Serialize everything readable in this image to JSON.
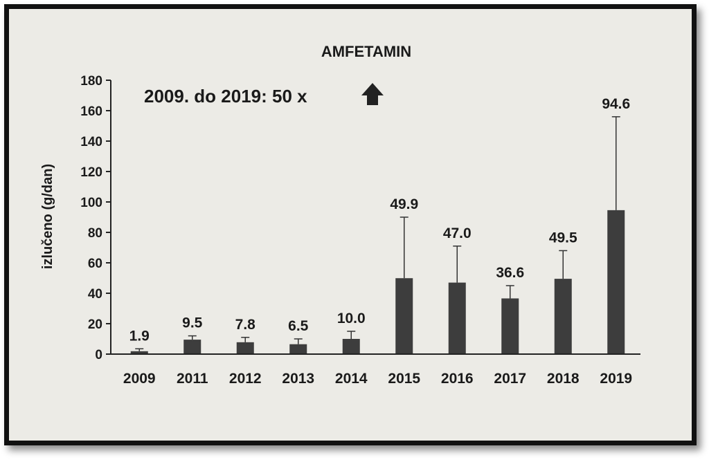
{
  "chart_data": {
    "type": "bar",
    "title": "AMFETAMIN",
    "annotation": "2009. do 2019: 50 x",
    "annotation_icon": "arrow-up-icon",
    "ylabel": "izlučeno (g/dan)",
    "xlabel": "",
    "ylim": [
      0,
      180
    ],
    "yticks": [
      0,
      20,
      40,
      60,
      80,
      100,
      120,
      140,
      160,
      180
    ],
    "grid": false,
    "categories": [
      "2009",
      "2011",
      "2012",
      "2013",
      "2014",
      "2015",
      "2016",
      "2017",
      "2018",
      "2019"
    ],
    "values": [
      1.9,
      9.5,
      7.8,
      6.5,
      10.0,
      49.9,
      47.0,
      36.6,
      49.5,
      94.6
    ],
    "value_labels": [
      "1.9",
      "9.5",
      "7.8",
      "6.5",
      "10.0",
      "49.9",
      "47.0",
      "36.6",
      "49.5",
      "94.6"
    ],
    "error_upper": [
      3.5,
      12,
      11,
      10,
      15,
      90,
      71,
      45,
      68,
      156
    ],
    "bar_color": "#3d3d3d"
  }
}
